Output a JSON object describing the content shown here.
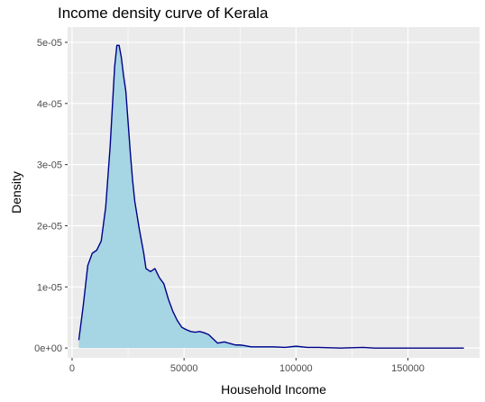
{
  "chart_data": {
    "type": "area",
    "title": "Income density curve of Kerala",
    "xlabel": "Household Income",
    "ylabel": "Density",
    "xlim": [
      -2000,
      182000
    ],
    "ylim": [
      -1.6e-06,
      5.25e-05
    ],
    "x_ticks": [
      {
        "value": 0,
        "label": "0"
      },
      {
        "value": 50000,
        "label": "50000"
      },
      {
        "value": 100000,
        "label": "100000"
      },
      {
        "value": 150000,
        "label": "150000"
      }
    ],
    "y_ticks": [
      {
        "value": 0,
        "label": "0e+00"
      },
      {
        "value": 1e-05,
        "label": "1e-05"
      },
      {
        "value": 2e-05,
        "label": "2e-05"
      },
      {
        "value": 3e-05,
        "label": "3e-05"
      },
      {
        "value": 4e-05,
        "label": "4e-05"
      },
      {
        "value": 5e-05,
        "label": "5e-05"
      }
    ],
    "grid": true,
    "legend": "none",
    "fill_color": "#a6d5e3",
    "line_color": "#00008b",
    "panel_color": "#ebebeb",
    "series": [
      {
        "x": [
          3000,
          5000,
          7000,
          9000,
          11000,
          13000,
          15000,
          17000,
          19000,
          20000,
          21000,
          22000,
          23000,
          24000,
          25000,
          26000,
          27000,
          28000,
          30000,
          32000,
          33000,
          35000,
          37000,
          39000,
          41000,
          43000,
          45000,
          47000,
          49000,
          51000,
          53000,
          55000,
          57000,
          59000,
          61000,
          63000,
          65000,
          68000,
          71000,
          73000,
          75000,
          77000,
          80000,
          85000,
          90000,
          95000,
          100000,
          105000,
          110000,
          120000,
          130000,
          135000,
          140000,
          150000,
          160000,
          165000,
          170000,
          175000
        ],
        "y": [
          1.3e-06,
          7e-06,
          1.35e-05,
          1.55e-05,
          1.6e-05,
          1.75e-05,
          2.3e-05,
          3.3e-05,
          4.6e-05,
          4.95e-05,
          4.95e-05,
          4.75e-05,
          4.45e-05,
          4.2e-05,
          3.7e-05,
          3.2e-05,
          2.75e-05,
          2.4e-05,
          1.95e-05,
          1.55e-05,
          1.3e-05,
          1.25e-05,
          1.3e-05,
          1.15e-05,
          1.05e-05,
          8e-06,
          6e-06,
          4.5e-06,
          3.4e-06,
          3e-06,
          2.7e-06,
          2.6e-06,
          2.7e-06,
          2.5e-06,
          2.2e-06,
          1.5e-06,
          8e-07,
          1e-06,
          7e-07,
          5e-07,
          5e-07,
          4e-07,
          2e-07,
          2e-07,
          2e-07,
          1e-07,
          3e-07,
          1e-07,
          1e-07,
          0,
          1e-07,
          0,
          0,
          0,
          0,
          0,
          0,
          0
        ]
      }
    ]
  }
}
